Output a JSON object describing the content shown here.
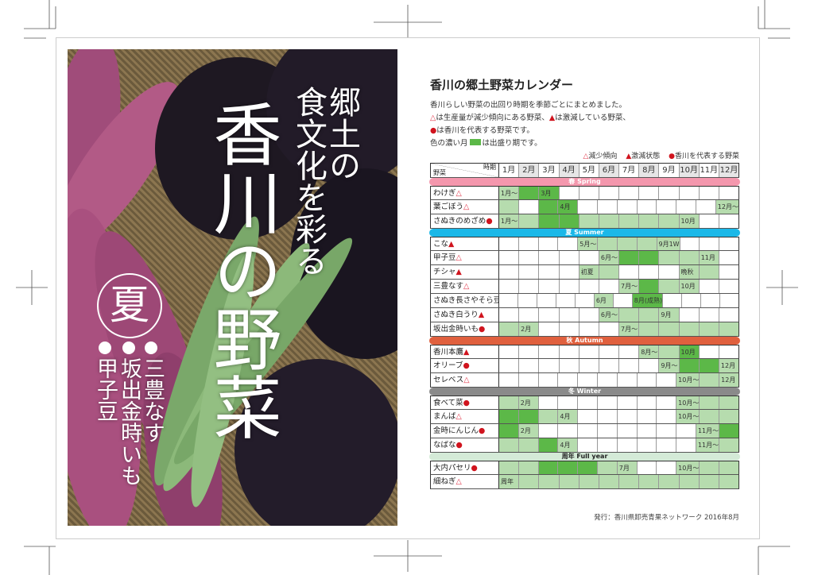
{
  "cover": {
    "subtitle_col1": "郷土の",
    "subtitle_col2": "食文化を彩る",
    "main_title": "香川の野菜",
    "season": "夏",
    "featured": [
      "三豊なす",
      "坂出金時いも",
      "甲子豆"
    ]
  },
  "calendar": {
    "title": "香川の郷土野菜カレンダー",
    "intro": [
      {
        "text": "香川らしい野菜の出回り時期を季節ごとにまとめました。"
      },
      {
        "mark1": "△",
        "text1": "は生産量が減少傾向にある野菜、",
        "mark2": "▲",
        "text2": "は激減している野菜、"
      },
      {
        "mark": "●",
        "text": "は香川を代表する野菜です。"
      },
      {
        "text1": "色の濃い月",
        "text2": "は出盛り期です。"
      }
    ],
    "legend": [
      {
        "mark": "△",
        "label": "減少傾向"
      },
      {
        "mark": "▲",
        "label": "激減状態"
      },
      {
        "mark": "●",
        "label": "香川を代表する野菜"
      }
    ],
    "header": {
      "vegetable": "野菜",
      "period": "時期",
      "months": [
        "1月",
        "2月",
        "3月",
        "4月",
        "5月",
        "6月",
        "7月",
        "8月",
        "9月",
        "10月",
        "11月",
        "12月"
      ]
    },
    "colors": {
      "light": "#b6dcae",
      "dark": "#5cb848",
      "decrease": "#e23b4e",
      "sharp": "#d0141e"
    },
    "sections": [
      {
        "label": "春 Spring",
        "color": "#f497ad",
        "rows": [
          {
            "name": "わけぎ",
            "mark": "△",
            "fill": "122000000000",
            "labels": {
              "1": "1月～",
              "3": "3月"
            }
          },
          {
            "name": "葉ごぼう",
            "mark": "△",
            "fill": "102200000001",
            "labels": {
              "4": "4月",
              "12": "12月～"
            }
          },
          {
            "name": "さぬきのめざめ",
            "mark": "●",
            "fill": "112211111100",
            "labels": {
              "1": "1月～",
              "10": "10月"
            }
          }
        ]
      },
      {
        "label": "夏 Summer",
        "color": "#1bb8e8",
        "rows": [
          {
            "name": "こな",
            "mark": "▲",
            "fill": "000011111000",
            "labels": {
              "5": "5月～",
              "9": "9月1W"
            }
          },
          {
            "name": "甲子豆",
            "mark": "△",
            "fill": "000001221110",
            "labels": {
              "6": "6月～",
              "11": "11月"
            }
          },
          {
            "name": "チシャ",
            "mark": "▲",
            "fill": "000011000110",
            "labels": {
              "5": "初夏",
              "10": "晩秋"
            }
          },
          {
            "name": "三豊なす",
            "mark": "△",
            "fill": "000000121100",
            "labels": {
              "7": "7月～",
              "10": "10月"
            }
          },
          {
            "name": "さぬき長さやそら豆",
            "mark": "▲",
            "fill": "000001020000",
            "labels": {
              "6": "6月",
              "8": "8月(成熟)"
            }
          },
          {
            "name": "さぬき白うり",
            "mark": "▲",
            "fill": "000001111000",
            "labels": {
              "6": "6月～",
              "9": "9月"
            }
          },
          {
            "name": "坂出金時いも",
            "mark": "●",
            "fill": "110000111111",
            "labels": {
              "2": "2月",
              "7": "7月～"
            }
          }
        ]
      },
      {
        "label": "秋 Autumn",
        "color": "#e0603e",
        "rows": [
          {
            "name": "香川本鷹",
            "mark": "▲",
            "fill": "000000011200",
            "labels": {
              "8": "8月～",
              "10": "10月"
            }
          },
          {
            "name": "オリーブ",
            "mark": "●",
            "fill": "000000001221",
            "labels": {
              "9": "9月～",
              "12": "12月"
            }
          },
          {
            "name": "セレベス",
            "mark": "△",
            "fill": "000000000111",
            "labels": {
              "10": "10月～",
              "12": "12月"
            }
          }
        ]
      },
      {
        "label": "冬 Winter",
        "color": "#8a8a8a",
        "rows": [
          {
            "name": "食べて菜",
            "mark": "●",
            "fill": "110000000111",
            "labels": {
              "2": "2月",
              "10": "10月～"
            }
          },
          {
            "name": "まんば",
            "mark": "△",
            "fill": "221100000111",
            "labels": {
              "4": "4月",
              "10": "10月～"
            }
          },
          {
            "name": "金時にんじん",
            "mark": "●",
            "fill": "210000000012",
            "labels": {
              "2": "2月",
              "11": "11月～"
            }
          },
          {
            "name": "なばな",
            "mark": "●",
            "fill": "112100000011",
            "labels": {
              "4": "4月",
              "11": "11月～"
            }
          }
        ]
      },
      {
        "label": "周年 Full year",
        "color": "#d4ead7",
        "text_color": "#222",
        "rows": [
          {
            "name": "大内パセリ",
            "mark": "●",
            "fill": "112221100111",
            "labels": {
              "7": "7月",
              "10": "10月～"
            }
          },
          {
            "name": "細ねぎ",
            "mark": "△",
            "fill": "111111111111",
            "labels": {
              "1": "周年"
            }
          }
        ]
      }
    ],
    "footer": "発行：香川県卸売青果ネットワーク 2016年8月"
  }
}
